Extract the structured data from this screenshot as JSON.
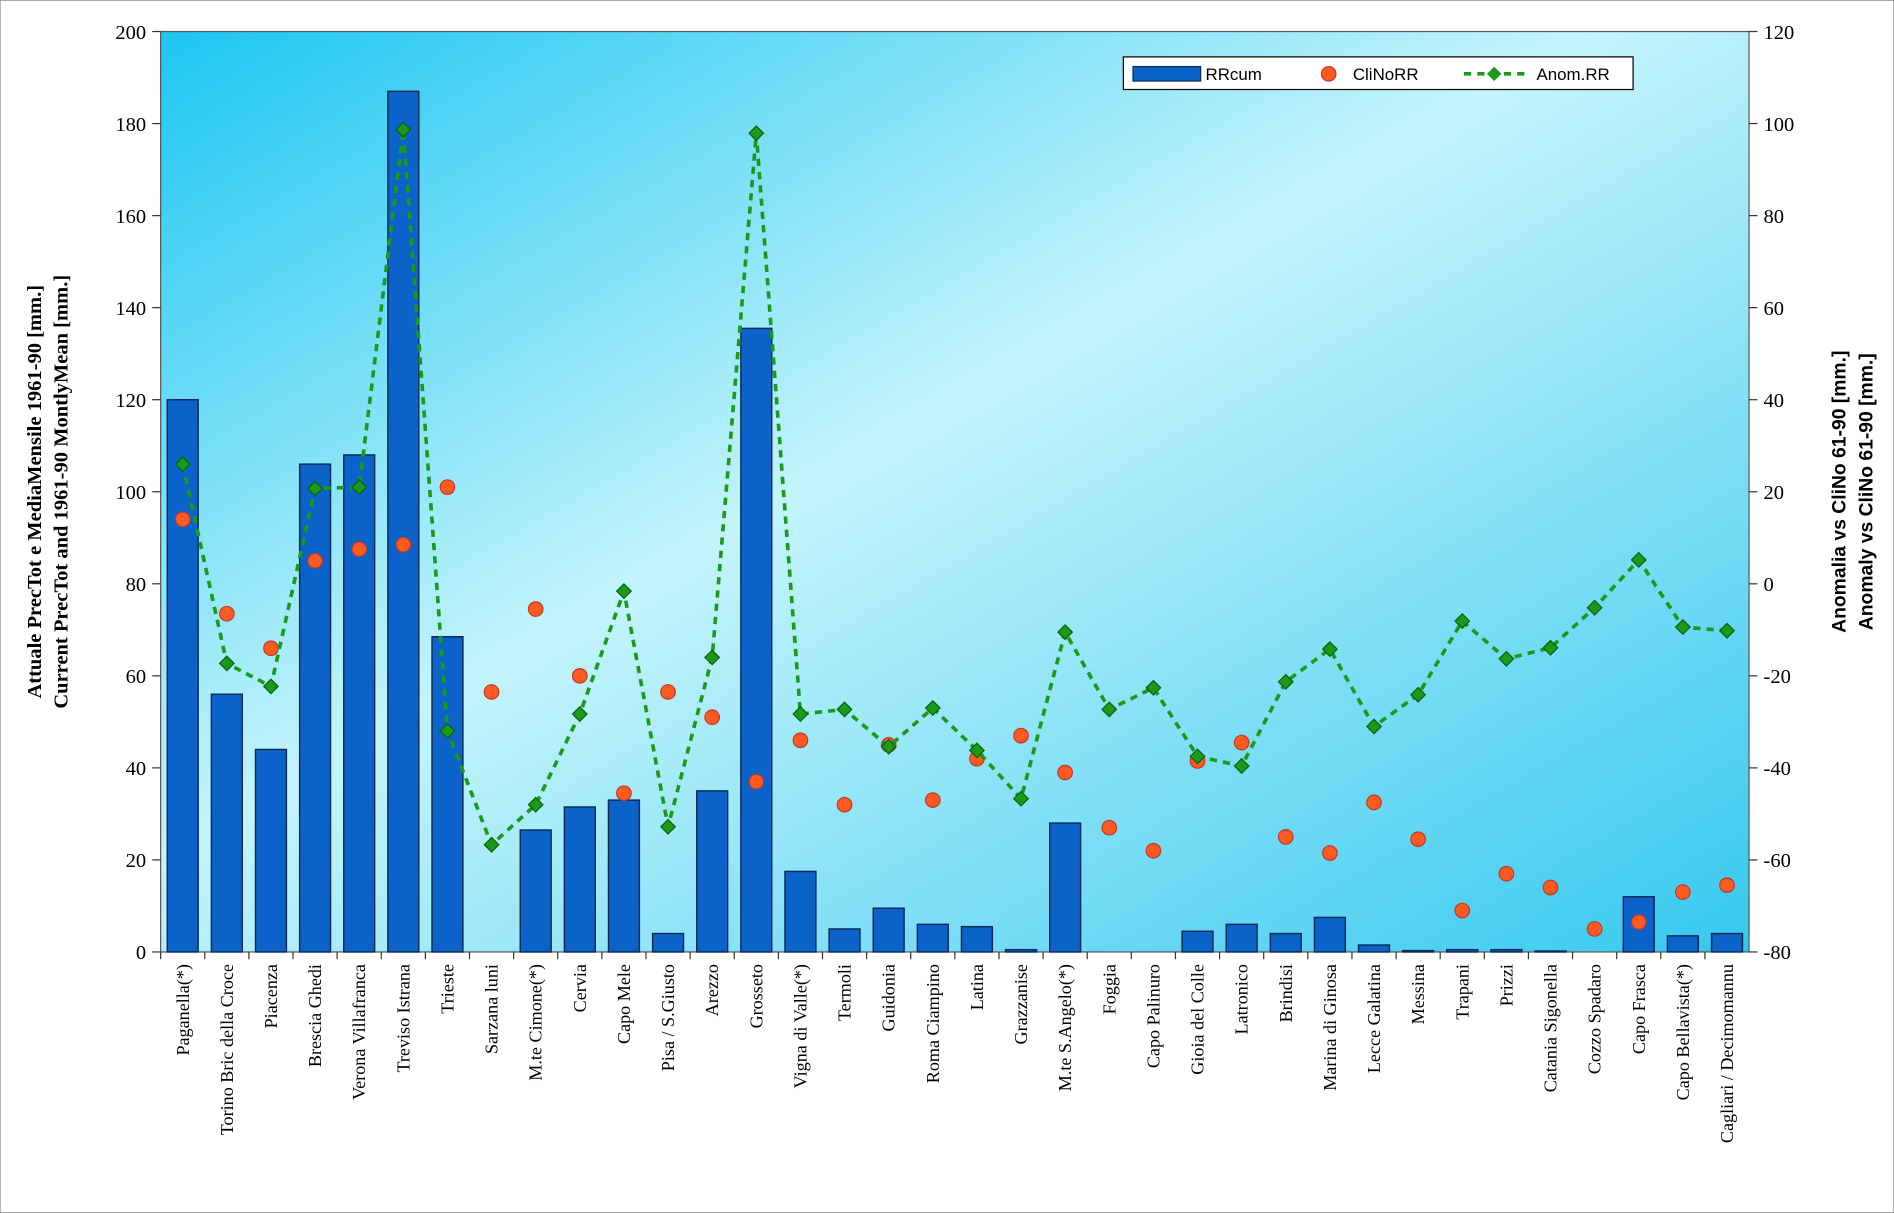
{
  "chart_data": {
    "type": "bar",
    "y_label_lines": [
      "Attuale PrecTot e MediaMensile 1961-90 [mm.]",
      "Current PrecTot and 1961-90 MontlyMean [mm.]"
    ],
    "y2_label_lines": [
      "Anomalia vs CliNo 61-90 [mm.]",
      "Anomaly vs CliNo 61-90 [mm.]"
    ],
    "categories": [
      "Paganella(*)",
      "Torino Bric della Croce",
      "Piacenza",
      "Brescia Ghedi",
      "Verona Villafranca",
      "Treviso Istrana",
      "Trieste",
      "Sarzana luni",
      "M.te Cimone(*)",
      "Cervia",
      "Capo Mele",
      "Pisa / S.Giusto",
      "Arezzo",
      "Grosseto",
      "Vigna di Valle(*)",
      "Termoli",
      "Guidonia",
      "Roma Ciampino",
      "Latina",
      "Grazzanise",
      "M.te S.Angelo(*)",
      "Foggia",
      "Capo Palinuro",
      "Gioia del Colle",
      "Latronico",
      "Brindisi",
      "Marina di Ginosa",
      "Lecce Galatina",
      "Messina",
      "Trapani",
      "Prizzi",
      "Catania Sigonella",
      "Cozzo Spadaro",
      "Capo Frasca",
      "Capo Bellavista(*)",
      "Cagliari / Decimomannu"
    ],
    "series": [
      {
        "name": "RRcum",
        "type": "bar",
        "color": "#0b62c9",
        "values": [
          120,
          56,
          44,
          106,
          108,
          187,
          68.5,
          0,
          26.5,
          31.5,
          33,
          4,
          35,
          135.5,
          17.5,
          5,
          9.5,
          6,
          5.5,
          0.5,
          28,
          0,
          0,
          4.5,
          6,
          4,
          7.5,
          1.5,
          0.3,
          0.5,
          0.5,
          0.2,
          0,
          12,
          3.5,
          4
        ]
      },
      {
        "name": "CliNoRR",
        "type": "scatter",
        "color": "#ff5a1f",
        "values": [
          94,
          73.5,
          66,
          85,
          87.5,
          88.5,
          101,
          56.5,
          74.5,
          60,
          34.5,
          56.5,
          51,
          37,
          46,
          32,
          45,
          33,
          42,
          47,
          39,
          27,
          22,
          41.5,
          45.5,
          25,
          21.5,
          32.5,
          24.5,
          9,
          17,
          14,
          5,
          6.5,
          13,
          14.5
        ]
      },
      {
        "name": "Anom.RR",
        "type": "line",
        "axis": "y2",
        "color": "#1a9a1a",
        "values": [
          26,
          -17.3,
          -22.3,
          20.7,
          21,
          98.7,
          -32,
          -56.7,
          -48,
          -28.3,
          -1.6,
          -52.8,
          -16,
          97.9,
          -28.3,
          -27.3,
          -35.4,
          -27,
          -36.2,
          -46.7,
          -10.5,
          -27.3,
          -22.6,
          -37.5,
          -39.6,
          -21.3,
          -14.2,
          -31,
          -24.1,
          -8.1,
          -16.3,
          -13.9,
          -5.2,
          5.2,
          -9.4,
          -10.2
        ]
      }
    ],
    "ylim": [
      0,
      200
    ],
    "yticks": [
      0,
      20,
      40,
      60,
      80,
      100,
      120,
      140,
      160,
      180,
      200
    ],
    "y2lim": [
      -80,
      120
    ],
    "y2ticks": [
      -80,
      -60,
      -40,
      -20,
      0,
      20,
      40,
      60,
      80,
      100,
      120
    ],
    "legend": "upper right"
  }
}
